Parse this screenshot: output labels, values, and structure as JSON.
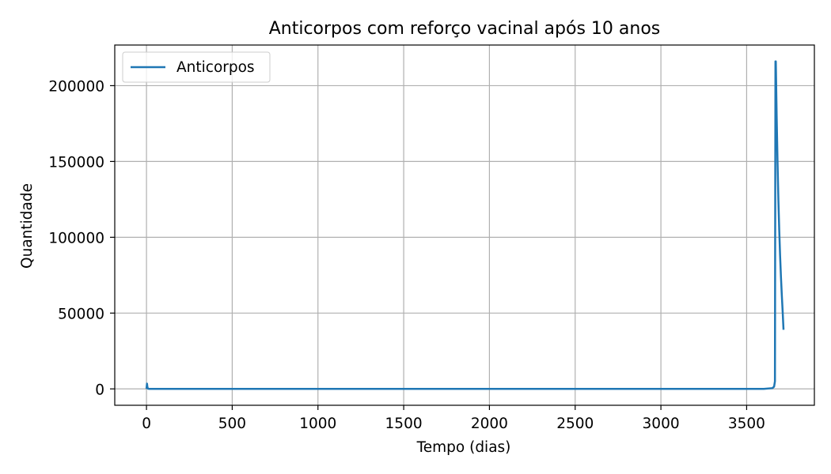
{
  "chart_data": {
    "type": "line",
    "title": "Anticorpos com reforço vacinal após 10 anos",
    "xlabel": "Tempo (dias)",
    "ylabel": "Quantidade",
    "xlim": [
      -185,
      3895
    ],
    "ylim": [
      -10800,
      226800
    ],
    "x_ticks": [
      0,
      500,
      1000,
      1500,
      2000,
      2500,
      3000,
      3500
    ],
    "x_tick_labels": [
      "0",
      "500",
      "1000",
      "1500",
      "2000",
      "2500",
      "3000",
      "3500"
    ],
    "y_ticks": [
      0,
      50000,
      100000,
      150000,
      200000
    ],
    "y_tick_labels": [
      "0",
      "50000",
      "100000",
      "150000",
      "200000"
    ],
    "grid": true,
    "legend_position": "top-left",
    "series": [
      {
        "name": "Anticorpos",
        "color": "#1f77b4",
        "x": [
          0,
          3,
          5,
          8,
          15,
          60,
          500,
          1000,
          2000,
          3000,
          3600,
          3650,
          3660,
          3665,
          3668,
          3670,
          3675,
          3680,
          3685,
          3690,
          3695,
          3700,
          3705,
          3710,
          3715
        ],
        "y": [
          0,
          3500,
          1500,
          200,
          0,
          0,
          0,
          0,
          0,
          0,
          0,
          500,
          1500,
          5000,
          216000,
          216000,
          180000,
          150000,
          125000,
          105000,
          88000,
          74000,
          62000,
          51000,
          39000
        ]
      }
    ]
  }
}
